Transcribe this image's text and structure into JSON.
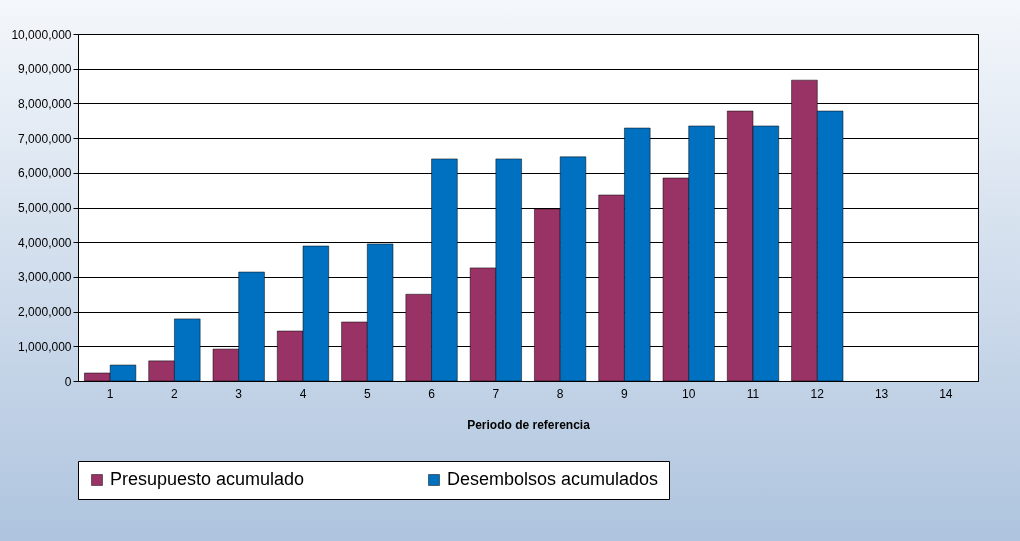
{
  "chart_data": {
    "type": "bar",
    "xlabel": "Periodo de referencia",
    "categories": [
      "1",
      "2",
      "3",
      "4",
      "5",
      "6",
      "7",
      "8",
      "9",
      "10",
      "11",
      "12",
      "13",
      "14"
    ],
    "series": [
      {
        "name": "Presupuesto acumulado",
        "color": "#993366",
        "values": [
          230000,
          580000,
          920000,
          1440000,
          1700000,
          2500000,
          3260000,
          4960000,
          5360000,
          5850000,
          7780000,
          8670000,
          null,
          null
        ]
      },
      {
        "name": "Desembolsos acumulados",
        "color": "#0070c0",
        "values": [
          460000,
          1790000,
          3140000,
          3890000,
          3950000,
          6400000,
          6400000,
          6460000,
          7290000,
          7350000,
          7350000,
          7780000,
          null,
          null
        ]
      }
    ],
    "ylim": [
      0,
      10000000
    ],
    "yticks": [
      0,
      {
        "value": 1000000,
        "label": "1,000,000"
      },
      {
        "value": 2000000,
        "label": "2,000,000"
      },
      {
        "value": 3000000,
        "label": "3,000,000"
      },
      {
        "value": 4000000,
        "label": "4,000,000"
      },
      {
        "value": 5000000,
        "label": "5,000,000"
      },
      {
        "value": 6000000,
        "label": "6,000,000"
      },
      {
        "value": 7000000,
        "label": "7,000,000"
      },
      {
        "value": 8000000,
        "label": "8,000,000"
      },
      {
        "value": 9000000,
        "label": "9,000,000"
      },
      {
        "value": 10000000,
        "label": "10,000,000"
      }
    ],
    "grid": "y",
    "legend": "bottom"
  }
}
